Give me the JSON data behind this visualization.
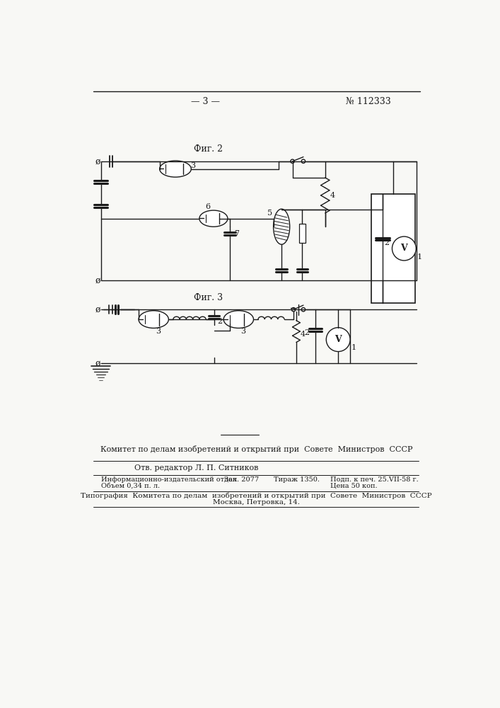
{
  "page_header_left": "— 3 —",
  "page_header_right": "№ 112333",
  "fig2_label": "Фиг. 2",
  "fig3_label": "Фиг. 3",
  "footer_center_line": "Комитет по делам изобретений и открытий при  Совете  Министров  СССР",
  "footer_editor": "Отв. редактор Л. П. Ситников",
  "footer_info_a": "Информационно-издательский отдел",
  "footer_info_b": "Объем 0,34 п. л.",
  "footer_zak": "Зак. 2077",
  "footer_tirazh": "Тираж 1350.",
  "footer_podp": "Подп. к печ. 25.VII-58 г.",
  "footer_cena": "Цена 50 коп.",
  "footer_tipogr": "Типография  Комитета по делам  изобретений и открытий при  Совете  Министров  СССР",
  "footer_addr": "Москва, Петровка, 14.",
  "bg_color": "#f8f8f5",
  "line_color": "#1a1a1a",
  "text_color": "#1a1a1a"
}
